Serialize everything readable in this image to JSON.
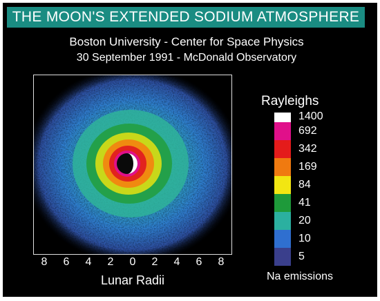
{
  "title": "THE MOON'S EXTENDED SODIUM ATMOSPHERE",
  "subtitle_line1": "Boston University - Center for Space Physics",
  "subtitle_line2": "30 September 1991 - McDonald Observatory",
  "axis": {
    "ticks": [
      "8",
      "6",
      "4",
      "2",
      "0",
      "2",
      "4",
      "6",
      "8"
    ],
    "label": "Lunar Radii"
  },
  "legend": {
    "title": "Rayleighs",
    "levels": [
      {
        "value": "1400",
        "color": "#ffffff"
      },
      {
        "value": "692",
        "color": "#e0108a"
      },
      {
        "value": "342",
        "color": "#e41b1b"
      },
      {
        "value": "169",
        "color": "#f07a10"
      },
      {
        "value": "84",
        "color": "#f2e612"
      },
      {
        "value": "41",
        "color": "#1e9a3a"
      },
      {
        "value": "20",
        "color": "#2bb0a0"
      },
      {
        "value": "10",
        "color": "#2f6fd0"
      },
      {
        "value": "5",
        "color": "#3a3f8c"
      }
    ],
    "caption": "Na emissions"
  }
}
